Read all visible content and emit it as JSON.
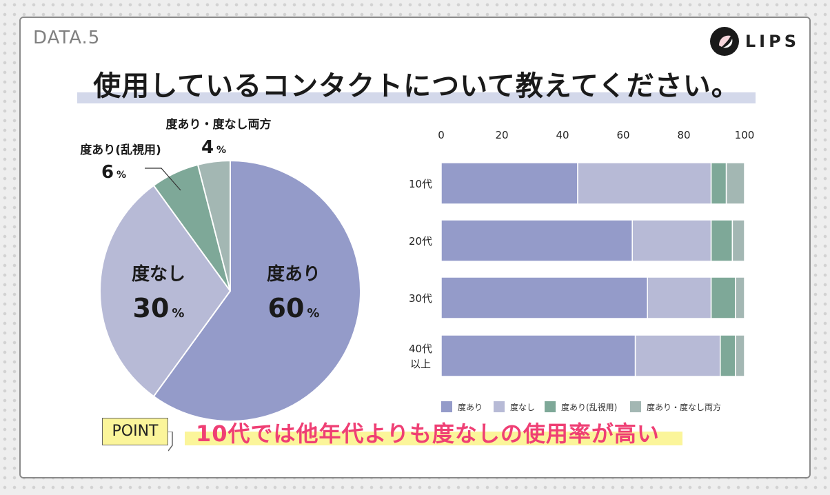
{
  "header": {
    "data_label": "DATA.5",
    "logo_text": "LIPS",
    "title": "使用しているコンタクトについて教えてください。"
  },
  "colors": {
    "ari": "#949bc9",
    "nashi": "#b7bad6",
    "ari_ranshi": "#7ea898",
    "both": "#a3b7b3",
    "point_text": "#ef3f74",
    "highlight": "#fbf59a"
  },
  "chart_data": [
    {
      "type": "pie",
      "slices": [
        {
          "label": "度あり",
          "value": 60,
          "value_text": "60",
          "unit": "%"
        },
        {
          "label": "度なし",
          "value": 30,
          "value_text": "30",
          "unit": "%"
        },
        {
          "label": "度あり(乱視用)",
          "value": 6,
          "value_text": "6",
          "unit": "%"
        },
        {
          "label": "度あり・度なし両方",
          "value": 4,
          "value_text": "4",
          "unit": "%"
        }
      ]
    },
    {
      "type": "bar",
      "orientation": "horizontal",
      "stacked": true,
      "xlim": [
        0,
        100
      ],
      "ticks": [
        "0",
        "20",
        "40",
        "60",
        "80",
        "100"
      ],
      "categories": [
        "10代",
        "20代",
        "30代",
        "40代\n以上"
      ],
      "series": [
        {
          "name": "度あり",
          "values": [
            45,
            63,
            68,
            64
          ]
        },
        {
          "name": "度なし",
          "values": [
            44,
            26,
            21,
            28
          ]
        },
        {
          "name": "度あり(乱視用)",
          "values": [
            5,
            7,
            8,
            5
          ]
        },
        {
          "name": "度あり・度なし両方",
          "values": [
            6,
            4,
            3,
            3
          ]
        }
      ],
      "legend_position": "bottom"
    }
  ],
  "point": {
    "tag": "POINT",
    "text": "10代では他年代よりも度なしの使用率が高い"
  }
}
